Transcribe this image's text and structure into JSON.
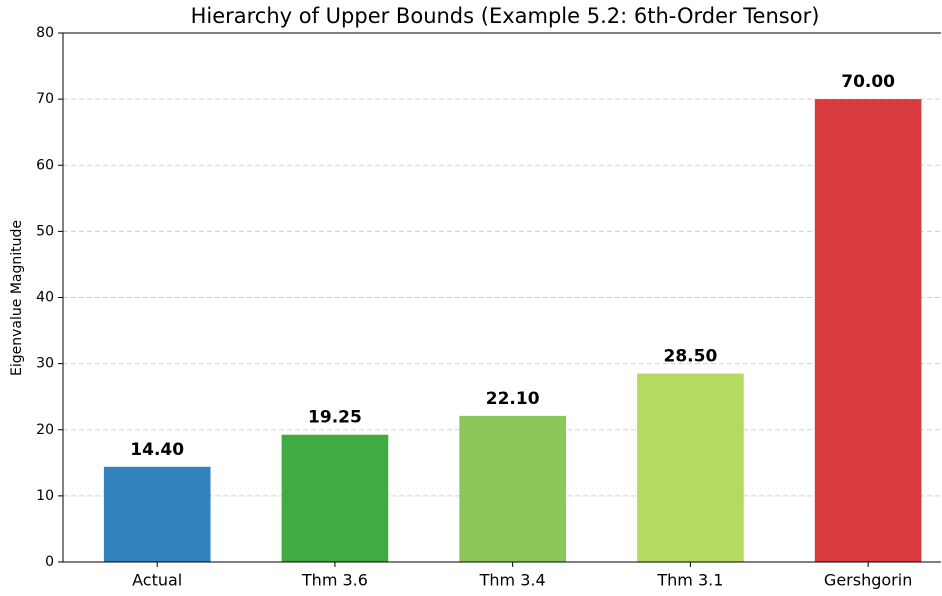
{
  "chart_data": {
    "type": "bar",
    "title": "Hierarchy of Upper Bounds (Example 5.2: 6th-Order Tensor)",
    "y_label": "Eigenvalue Magnitude",
    "categories": [
      "Actual",
      "Thm 3.6",
      "Thm 3.4",
      "Thm 3.1",
      "Gershgorin"
    ],
    "values": [
      14.4,
      19.25,
      22.1,
      28.5,
      70
    ],
    "value_labels": [
      "14.40",
      "19.25",
      "22.10",
      "28.50",
      "70.00"
    ],
    "colors": [
      "#3182bd",
      "#41ab43",
      "#8bc75a",
      "#b5da62",
      "#d93a3d"
    ],
    "ylim": [
      0,
      80
    ],
    "yticks": [
      0,
      10,
      20,
      30,
      40,
      50,
      60,
      70,
      80
    ],
    "grid": true
  }
}
